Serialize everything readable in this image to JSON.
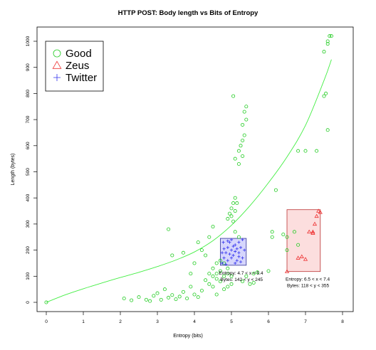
{
  "chart_data": {
    "type": "scatter",
    "title": "HTTP POST: Body length vs Bits of Entropy",
    "xlabel": "Entropy (bits)",
    "ylabel": "Length (bytes)",
    "xlim": [
      0,
      8
    ],
    "ylim": [
      0,
      1000
    ],
    "x_ticks": [
      "0",
      "1",
      "2",
      "3",
      "4",
      "5",
      "6",
      "7",
      "8"
    ],
    "y_ticks": [
      "0",
      "100",
      "200",
      "300",
      "400",
      "500",
      "600",
      "700",
      "800",
      "900",
      "1000"
    ],
    "grid": false,
    "legend_position": "top-left",
    "colors": {
      "good": "#22cc22",
      "zeus": "#ee3333",
      "twitter": "#3333ee",
      "fit": "#44ee44"
    },
    "series": [
      {
        "name": "Good",
        "marker": "circle",
        "points": [
          [
            0.0,
            0
          ],
          [
            2.1,
            15
          ],
          [
            2.3,
            8
          ],
          [
            2.5,
            20
          ],
          [
            2.7,
            10
          ],
          [
            2.8,
            5
          ],
          [
            2.9,
            25
          ],
          [
            3.0,
            35
          ],
          [
            3.1,
            10
          ],
          [
            3.2,
            50
          ],
          [
            3.3,
            18
          ],
          [
            3.4,
            28
          ],
          [
            3.5,
            12
          ],
          [
            3.6,
            22
          ],
          [
            3.7,
            40
          ],
          [
            3.8,
            15
          ],
          [
            3.9,
            60
          ],
          [
            4.0,
            30
          ],
          [
            4.1,
            20
          ],
          [
            4.2,
            45
          ],
          [
            4.3,
            85
          ],
          [
            4.4,
            70
          ],
          [
            4.4,
            110
          ],
          [
            4.5,
            60
          ],
          [
            4.5,
            130
          ],
          [
            4.6,
            90
          ],
          [
            4.6,
            30
          ],
          [
            4.7,
            80
          ],
          [
            4.7,
            120
          ],
          [
            4.8,
            100
          ],
          [
            4.8,
            50
          ],
          [
            4.9,
            130
          ],
          [
            4.9,
            60
          ],
          [
            5.0,
            70
          ],
          [
            5.0,
            100
          ],
          [
            4.3,
            180
          ],
          [
            4.2,
            200
          ],
          [
            4.4,
            250
          ],
          [
            4.5,
            290
          ],
          [
            4.1,
            230
          ],
          [
            3.7,
            190
          ],
          [
            3.4,
            180
          ],
          [
            3.3,
            280
          ],
          [
            4.0,
            150
          ],
          [
            4.6,
            150
          ],
          [
            4.9,
            320
          ],
          [
            4.95,
            340
          ],
          [
            5.0,
            360
          ],
          [
            5.05,
            380
          ],
          [
            5.1,
            400
          ],
          [
            5.0,
            330
          ],
          [
            5.1,
            350
          ],
          [
            5.05,
            310
          ],
          [
            5.15,
            380
          ],
          [
            5.1,
            270
          ],
          [
            5.2,
            250
          ],
          [
            5.2,
            580
          ],
          [
            5.25,
            600
          ],
          [
            5.3,
            620
          ],
          [
            5.35,
            640
          ],
          [
            5.3,
            560
          ],
          [
            5.4,
            700
          ],
          [
            5.4,
            750
          ],
          [
            5.35,
            730
          ],
          [
            5.3,
            680
          ],
          [
            5.05,
            790
          ],
          [
            5.1,
            550
          ],
          [
            5.2,
            530
          ],
          [
            5.6,
            110
          ],
          [
            5.7,
            115
          ],
          [
            5.4,
            100
          ],
          [
            5.5,
            70
          ],
          [
            6.0,
            120
          ],
          [
            6.1,
            250
          ],
          [
            6.2,
            430
          ],
          [
            6.1,
            270
          ],
          [
            6.4,
            260
          ],
          [
            6.5,
            250
          ],
          [
            6.7,
            270
          ],
          [
            6.8,
            580
          ],
          [
            7.0,
            580
          ],
          [
            7.3,
            580
          ],
          [
            7.5,
            790
          ],
          [
            7.55,
            800
          ],
          [
            7.6,
            660
          ],
          [
            7.5,
            960
          ],
          [
            7.6,
            1000
          ],
          [
            7.65,
            1020
          ],
          [
            7.7,
            1020
          ],
          [
            7.6,
            990
          ],
          [
            4.7,
            160
          ],
          [
            4.8,
            150
          ],
          [
            4.6,
            110
          ],
          [
            4.5,
            100
          ],
          [
            4.9,
            110
          ],
          [
            5.3,
            80
          ],
          [
            5.6,
            75
          ],
          [
            6.5,
            200
          ],
          [
            6.8,
            220
          ],
          [
            3.9,
            110
          ]
        ]
      },
      {
        "name": "Zeus",
        "marker": "triangle",
        "points": [
          [
            6.5,
            118
          ],
          [
            6.8,
            170
          ],
          [
            6.9,
            175
          ],
          [
            7.0,
            165
          ],
          [
            7.1,
            270
          ],
          [
            7.2,
            265
          ],
          [
            7.25,
            300
          ],
          [
            7.3,
            330
          ],
          [
            7.35,
            350
          ],
          [
            7.4,
            345
          ],
          [
            7.2,
            270
          ]
        ]
      },
      {
        "name": "Twitter",
        "marker": "plus",
        "points": [
          [
            4.75,
            150
          ],
          [
            4.8,
            170
          ],
          [
            4.85,
            190
          ],
          [
            4.9,
            210
          ],
          [
            4.95,
            230
          ],
          [
            5.0,
            200
          ],
          [
            5.05,
            180
          ],
          [
            5.1,
            220
          ],
          [
            5.15,
            160
          ],
          [
            5.2,
            190
          ],
          [
            5.25,
            210
          ],
          [
            4.78,
            230
          ],
          [
            4.9,
            160
          ],
          [
            5.0,
            240
          ],
          [
            5.1,
            150
          ],
          [
            5.3,
            170
          ],
          [
            5.2,
            230
          ],
          [
            4.85,
            145
          ],
          [
            5.0,
            170
          ],
          [
            5.3,
            240
          ],
          [
            4.95,
            185
          ],
          [
            5.1,
            195
          ],
          [
            4.8,
            205
          ],
          [
            5.2,
            175
          ],
          [
            5.35,
            200
          ],
          [
            4.9,
            235
          ],
          [
            5.05,
            215
          ],
          [
            5.15,
            205
          ],
          [
            4.75,
            190
          ],
          [
            5.25,
            155
          ]
        ]
      }
    ],
    "fit_curve": [
      [
        0,
        0
      ],
      [
        0.5,
        28
      ],
      [
        1,
        52
      ],
      [
        1.5,
        74
      ],
      [
        2,
        95
      ],
      [
        2.5,
        115
      ],
      [
        3,
        137
      ],
      [
        3.5,
        162
      ],
      [
        4,
        193
      ],
      [
        4.5,
        236
      ],
      [
        5,
        295
      ],
      [
        5.5,
        370
      ],
      [
        6,
        458
      ],
      [
        6.5,
        557
      ],
      [
        7,
        678
      ],
      [
        7.5,
        850
      ],
      [
        7.7,
        930
      ]
    ],
    "boxes": [
      {
        "series": "Twitter",
        "x_range": [
          4.7,
          5.4
        ],
        "y_range": [
          142,
          245
        ],
        "label_line1": "Entropy: 4.7 < x < 5.4",
        "label_line2": "Bytes: 142 < y < 245"
      },
      {
        "series": "Zeus",
        "x_range": [
          6.5,
          7.4
        ],
        "y_range": [
          118,
          355
        ],
        "label_line1": "Entropy: 6.5 < x < 7.4",
        "label_line2": "Bytes: 118 < y < 355"
      }
    ]
  }
}
